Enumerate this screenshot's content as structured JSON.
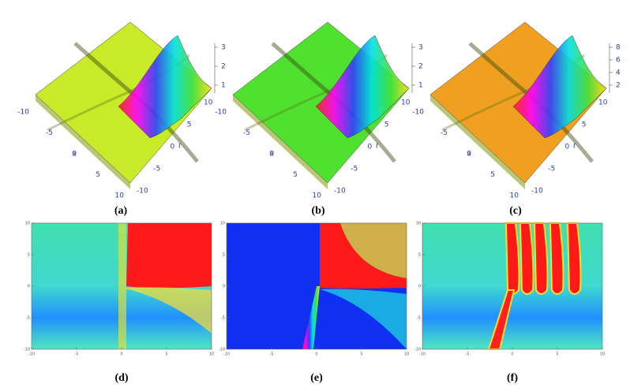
{
  "surface_panels": [
    {
      "label": "(a)",
      "x_label": "x",
      "t_label": "t",
      "x_ticks": [
        "-10",
        "-5",
        "0",
        "5",
        "10"
      ],
      "t_ticks": [
        "-10",
        "-5",
        "0",
        "5",
        "10"
      ],
      "z_ticks": [
        "1",
        "2",
        "3"
      ]
    },
    {
      "label": "(b)",
      "x_label": "x",
      "t_label": "t",
      "x_ticks": [
        "-10",
        "-5",
        "0",
        "5",
        "10"
      ],
      "t_ticks": [
        "-10",
        "-5",
        "0",
        "5",
        "10"
      ],
      "z_ticks": [
        "1",
        "2",
        "3"
      ]
    },
    {
      "label": "(c)",
      "x_label": "x",
      "t_label": "t",
      "x_ticks": [
        "-10",
        "-5",
        "0",
        "5",
        "10"
      ],
      "t_ticks": [
        "-10",
        "-5",
        "0",
        "5",
        "10"
      ],
      "z_ticks": [
        "2",
        "4",
        "6",
        "8"
      ]
    }
  ],
  "density_panels": [
    {
      "label": "(d)",
      "x_ticks": [
        "-10",
        "-5",
        "0",
        "5",
        "10"
      ],
      "y_ticks": [
        "-10",
        "-5",
        "0",
        "5",
        "10"
      ]
    },
    {
      "label": "(e)",
      "x_ticks": [
        "-10",
        "-5",
        "0",
        "5",
        "10"
      ],
      "y_ticks": [
        "-10",
        "-5",
        "0",
        "5",
        "10"
      ]
    },
    {
      "label": "(f)",
      "x_ticks": [
        "-10",
        "-5",
        "0",
        "5",
        "10"
      ],
      "y_ticks": [
        "-10",
        "-5",
        "0",
        "5",
        "10"
      ]
    }
  ]
}
